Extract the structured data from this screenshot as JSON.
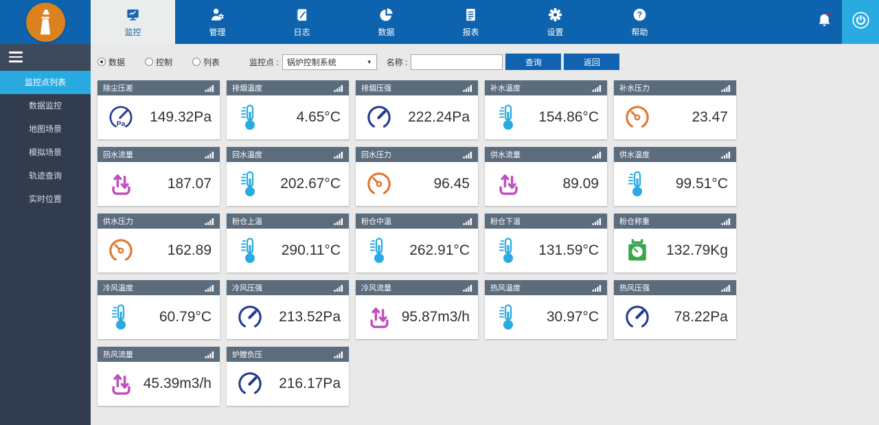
{
  "colors": {
    "nav_blue": "#0d63ae",
    "accent": "#1465b0",
    "light_blue": "#29abe2",
    "card_header_bg": "#5b6c7d",
    "logo_orange": "#d9821f",
    "magenta": "#bf4fbf",
    "orange": "#e0772e",
    "gauge_blue": "#243b8e",
    "green": "#3aa54a",
    "alert_red": "#e1251b",
    "button_blue": "#1163b2"
  },
  "nav": {
    "logo_icon": "factory-chimney-icon",
    "tabs": [
      {
        "id": "monitor",
        "label": "监控",
        "icon": "monitor-icon",
        "active": true
      },
      {
        "id": "manage",
        "label": "管理",
        "icon": "user-gear-icon",
        "active": false
      },
      {
        "id": "log",
        "label": "日志",
        "icon": "journal-icon",
        "active": false
      },
      {
        "id": "data",
        "label": "数据",
        "icon": "pie-chart-icon",
        "active": false
      },
      {
        "id": "report",
        "label": "报表",
        "icon": "report-icon",
        "active": false
      },
      {
        "id": "settings",
        "label": "设置",
        "icon": "gear-icon",
        "active": false
      },
      {
        "id": "help",
        "label": "帮助",
        "icon": "help-icon",
        "active": false
      }
    ],
    "notification_icon": "bell-icon",
    "notification_alert": true,
    "power_icon": "power-icon"
  },
  "sidebar": {
    "menu_toggle_icon": "hamburger-icon",
    "items": [
      {
        "id": "monitor-point-list",
        "label": "监控点列表",
        "active": true
      },
      {
        "id": "data-monitor",
        "label": "数据监控",
        "active": false
      },
      {
        "id": "map-scene",
        "label": "地图场景",
        "active": false
      },
      {
        "id": "simulation-scene",
        "label": "模拟场景",
        "active": false
      },
      {
        "id": "track-query",
        "label": "轨迹查询",
        "active": false
      },
      {
        "id": "realtime-location",
        "label": "实时位置",
        "active": false
      }
    ]
  },
  "filter": {
    "radios": [
      {
        "id": "data",
        "label": "数据",
        "selected": true
      },
      {
        "id": "control",
        "label": "控制",
        "selected": false
      },
      {
        "id": "list",
        "label": "列表",
        "selected": false
      }
    ],
    "monitor_point_label": "监控点 :",
    "monitor_point_value": "锅炉控制系统",
    "name_label": "名称 :",
    "name_value": "",
    "search_button": "查询",
    "back_button": "返回"
  },
  "cards": [
    {
      "title": "除尘压差",
      "value": "149.32Pa",
      "icon": "gauge-pa-icon"
    },
    {
      "title": "排烟温度",
      "value": "4.65°C",
      "icon": "thermometer-icon"
    },
    {
      "title": "排烟压强",
      "value": "222.24Pa",
      "icon": "gauge-blue-icon"
    },
    {
      "title": "补水温度",
      "value": "154.86°C",
      "icon": "thermometer-icon"
    },
    {
      "title": "补水压力",
      "value": "23.47",
      "icon": "gauge-orange-icon"
    },
    {
      "title": "回水流量",
      "value": "187.07",
      "icon": "flow-icon"
    },
    {
      "title": "回水温度",
      "value": "202.67°C",
      "icon": "thermometer-icon"
    },
    {
      "title": "回水压力",
      "value": "96.45",
      "icon": "gauge-orange-icon"
    },
    {
      "title": "供水流量",
      "value": "89.09",
      "icon": "flow-icon"
    },
    {
      "title": "供水温度",
      "value": "99.51°C",
      "icon": "thermometer-icon"
    },
    {
      "title": "供水压力",
      "value": "162.89",
      "icon": "gauge-orange-icon"
    },
    {
      "title": "粉仓上温",
      "value": "290.11°C",
      "icon": "thermometer-icon"
    },
    {
      "title": "粉仓中温",
      "value": "262.91°C",
      "icon": "thermometer-icon"
    },
    {
      "title": "粉仓下温",
      "value": "131.59°C",
      "icon": "thermometer-icon"
    },
    {
      "title": "粉仓称重",
      "value": "132.79Kg",
      "icon": "scale-icon"
    },
    {
      "title": "冷风温度",
      "value": "60.79°C",
      "icon": "thermometer-icon"
    },
    {
      "title": "冷风压强",
      "value": "213.52Pa",
      "icon": "gauge-blue-icon"
    },
    {
      "title": "冷风流量",
      "value": "95.87m3/h",
      "icon": "flow-icon"
    },
    {
      "title": "热风温度",
      "value": "30.97°C",
      "icon": "thermometer-icon"
    },
    {
      "title": "热风压强",
      "value": "78.22Pa",
      "icon": "gauge-blue-icon"
    },
    {
      "title": "热风流量",
      "value": "45.39m3/h",
      "icon": "flow-icon"
    },
    {
      "title": "炉膛负压",
      "value": "216.17Pa",
      "icon": "gauge-blue-icon"
    }
  ]
}
